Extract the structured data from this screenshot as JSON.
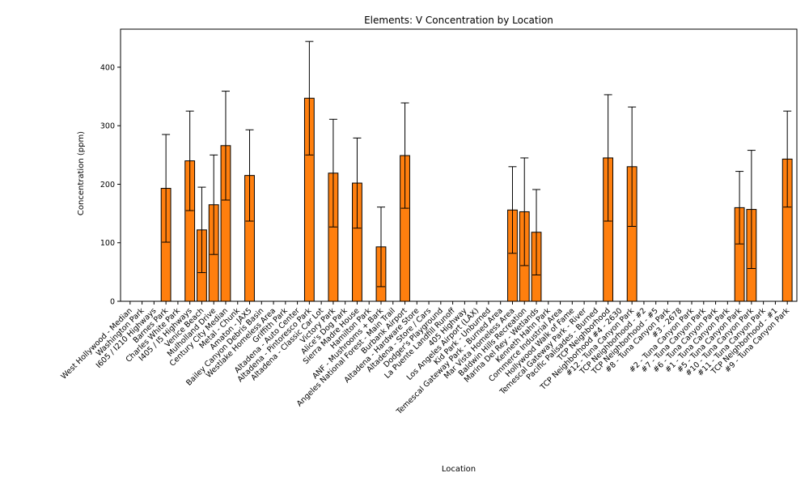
{
  "chart_data": {
    "type": "bar",
    "title": "Elements: V Concentration by Location",
    "xlabel": "Location",
    "ylabel": "Concentration (ppm)",
    "ylim": [
      0,
      465
    ],
    "yticks": [
      0,
      100,
      200,
      300,
      400
    ],
    "grid": false,
    "bar_color": "#ff7f0e",
    "edge_color": "#000000",
    "categories": [
      "West Hollywood - Median",
      "Washington Park",
      "I605 / I210 Highways",
      "Barnes Park",
      "Charles White Park",
      "I405 / I5 Highways",
      "Venice Beach",
      "Mulholland Drive",
      "Century City Median",
      "Metal - Chunk",
      "Amaton - JAX5",
      "Bailey Canyon Debris Basin",
      "Westlake Homeless Area",
      "Griffith Park",
      "Altadena - Auto Center",
      "Altadena - Pintoresco Park",
      "Altadena - Classic Car Lot",
      "Victory Park",
      "Alice's Dog Park",
      "Sierra Madre House",
      "Hamilton Park",
      "ANF - Mushrooms + Bark",
      "Angeles National Forest - Main Trail",
      "Burbank Airport",
      "Altadena - Hardware Store",
      "Altadena - Store / Cars",
      "Dodger's Playground",
      "La Puente Landfill Runoff",
      "405 Highway",
      "Los Angeles Airport (LAX)",
      "Kid Park - Unburned",
      "Temescal Gateway Park - Burned Area",
      "Mar Vista Homeless Area",
      "Baldwin Hills Recreation",
      "Marina Del Rey - Wetlands",
      "Kenneth Hahn Park",
      "Commerce Industrial Area",
      "Hollywood Walk of Fame",
      "Temescal Gateway Park - River",
      "Pacific Palisades - Burned",
      "TCP Neighborhood",
      "TCP Neighborhood #4 - 2630",
      "#12 - Tuna Canyon Park",
      "TCP Neighborhood - #2",
      "TCP Neighborhood - #5",
      "#8 - Tuna Canyon Park",
      "#3 - 2678",
      "#2 - Tuna Canyon Park",
      "#7 - Tuna Canyon Park",
      "#6 - Tuna Canyon Park",
      "#1 - Tuna Canyon Park",
      "#5 - Tuna Canyon Park",
      "#10 - Tuna Canyon Park",
      "#11 - Tuna Canyon Park",
      "TCP Neighborhood - #1",
      "#9 - Tuna Canyon Park"
    ],
    "values": [
      0,
      0,
      0,
      193,
      0,
      240,
      122,
      165,
      266,
      0,
      215,
      0,
      0,
      0,
      0,
      347,
      0,
      219,
      0,
      202,
      0,
      93,
      0,
      249,
      0,
      0,
      0,
      0,
      0,
      0,
      0,
      0,
      156,
      153,
      118,
      0,
      0,
      0,
      0,
      0,
      245,
      0,
      230,
      0,
      0,
      0,
      0,
      0,
      0,
      0,
      0,
      160,
      157,
      0,
      0,
      243
    ],
    "errors": [
      0,
      0,
      0,
      92,
      0,
      85,
      73,
      85,
      93,
      0,
      78,
      0,
      0,
      0,
      0,
      97,
      0,
      92,
      0,
      77,
      0,
      68,
      0,
      90,
      0,
      0,
      0,
      0,
      0,
      0,
      0,
      0,
      74,
      92,
      73,
      0,
      0,
      0,
      0,
      0,
      108,
      0,
      102,
      0,
      0,
      0,
      0,
      0,
      0,
      0,
      0,
      62,
      101,
      0,
      0,
      82
    ]
  }
}
